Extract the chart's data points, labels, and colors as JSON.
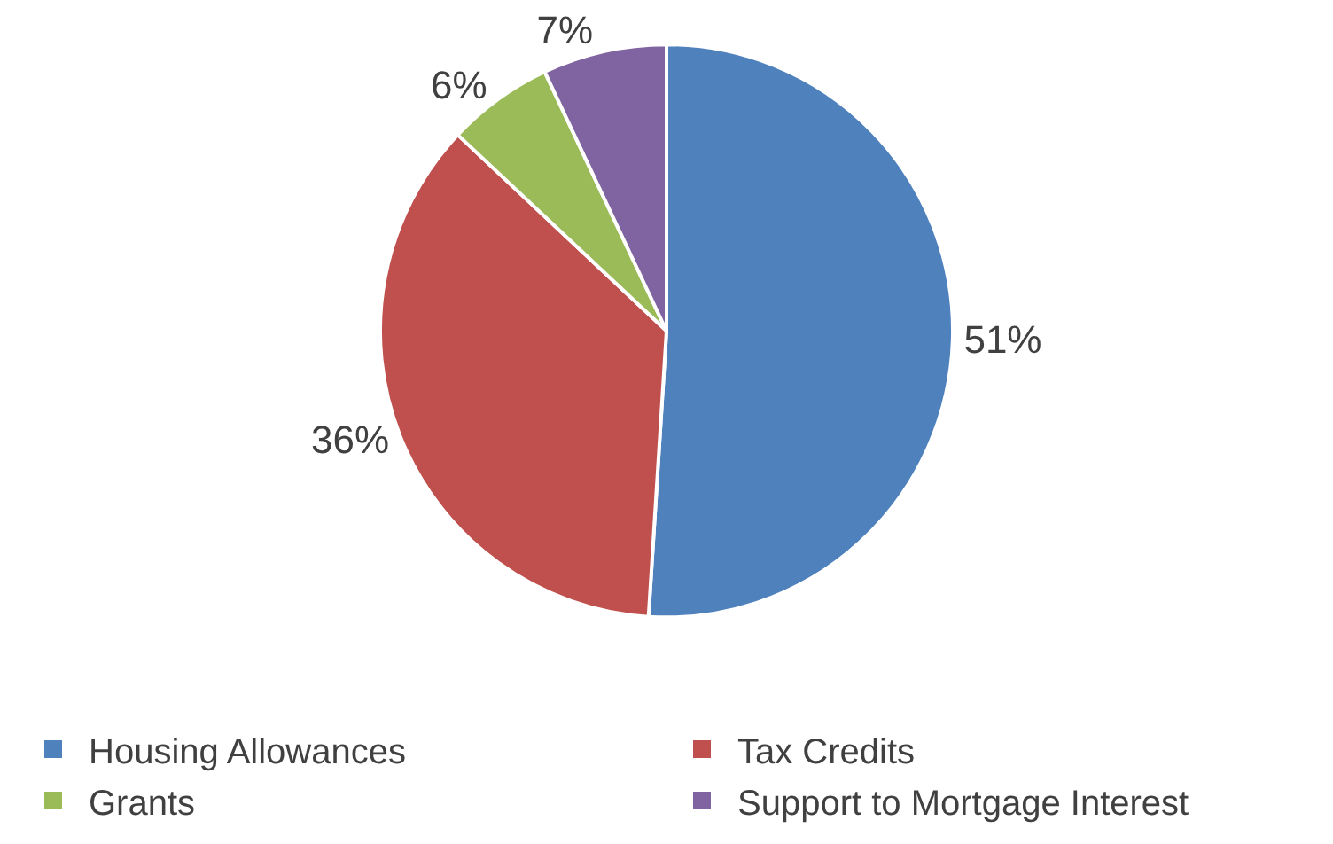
{
  "chart_data": {
    "type": "pie",
    "categories": [
      "Housing Allowances",
      "Tax Credits",
      "Grants",
      "Support to Mortgage Interest"
    ],
    "values": [
      51,
      36,
      6,
      7
    ],
    "value_labels": [
      "51%",
      "36%",
      "6%",
      "7%"
    ],
    "colors": [
      "#4f81bd",
      "#c0504d",
      "#9bbb59",
      "#8064a2"
    ],
    "legend": "bottom"
  }
}
